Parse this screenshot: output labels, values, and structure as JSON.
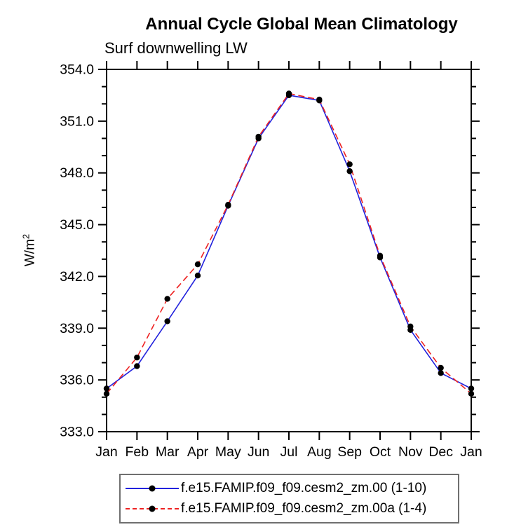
{
  "title": "Annual Cycle Global Mean Climatology",
  "subtitle": "Surf downwelling LW",
  "chart_data": {
    "type": "line",
    "title": "Annual Cycle Global Mean Climatology",
    "subtitle": "Surf downwelling LW",
    "xlabel": "",
    "ylabel": "W/m²",
    "ylim": [
      333.0,
      354.0
    ],
    "ytick_major_step": 3.0,
    "ytick_minor_step": 1.0,
    "ytick_labels": [
      "333.0",
      "336.0",
      "339.0",
      "342.0",
      "345.0",
      "348.0",
      "351.0",
      "354.0"
    ],
    "categories": [
      "Jan",
      "Feb",
      "Mar",
      "Apr",
      "May",
      "Jun",
      "Jul",
      "Aug",
      "Sep",
      "Oct",
      "Nov",
      "Dec",
      "Jan"
    ],
    "grid": false,
    "legend_position": "bottom",
    "axis_color": "#000000",
    "background": "#ffffff",
    "series": [
      {
        "name": "f.e15.FAMIP.f09_f09.cesm2_zm.00 (1-10)",
        "color": "#2222dd",
        "line_style": "solid",
        "marker": "circle",
        "marker_color": "#000000",
        "values": [
          335.5,
          336.8,
          339.4,
          342.05,
          346.1,
          350.0,
          352.5,
          352.2,
          348.1,
          343.1,
          338.9,
          336.4,
          335.5
        ]
      },
      {
        "name": "f.e15.FAMIP.f09_f09.cesm2_zm.00a (1-4)",
        "color": "#ee2222",
        "line_style": "dashed",
        "marker": "circle",
        "marker_color": "#000000",
        "values": [
          335.2,
          337.3,
          340.7,
          342.7,
          346.15,
          350.1,
          352.6,
          352.25,
          348.5,
          343.2,
          339.1,
          336.7,
          335.2
        ]
      }
    ]
  }
}
